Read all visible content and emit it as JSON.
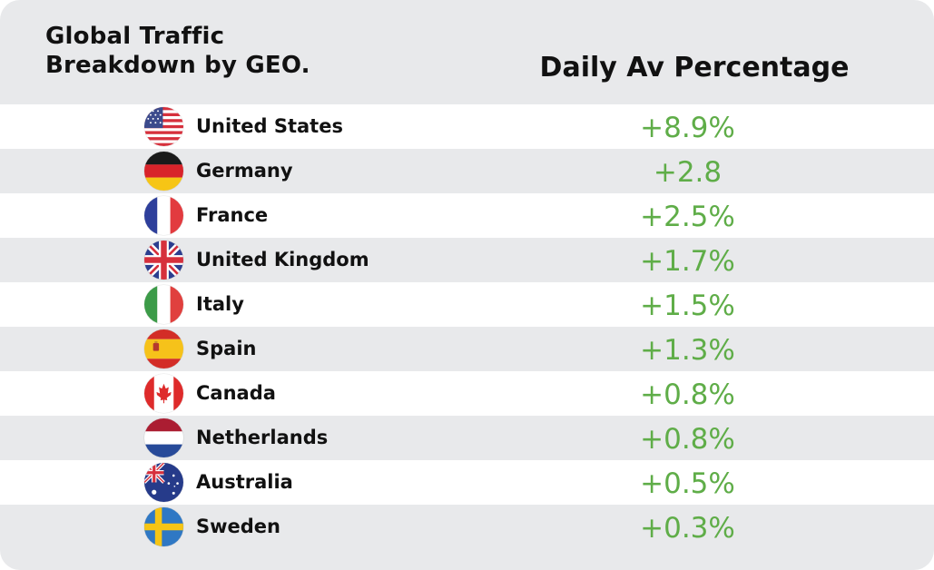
{
  "chart_data": {
    "type": "table",
    "title": "Global Traffic Breakdown by GEO.",
    "column_header": "Daily Av Percentage",
    "value_color": "#5fad48",
    "rows": [
      {
        "country": "United States",
        "value": "+8.9%",
        "flag": "us-flag-icon"
      },
      {
        "country": "Germany",
        "value": "+2.8",
        "flag": "germany-flag-icon"
      },
      {
        "country": "France",
        "value": "+2.5%",
        "flag": "france-flag-icon"
      },
      {
        "country": "United Kingdom",
        "value": "+1.7%",
        "flag": "uk-flag-icon"
      },
      {
        "country": "Italy",
        "value": "+1.5%",
        "flag": "italy-flag-icon"
      },
      {
        "country": "Spain",
        "value": "+1.3%",
        "flag": "spain-flag-icon"
      },
      {
        "country": "Canada",
        "value": "+0.8%",
        "flag": "canada-flag-icon"
      },
      {
        "country": "Netherlands",
        "value": "+0.8%",
        "flag": "netherlands-flag-icon"
      },
      {
        "country": "Australia",
        "value": "+0.5%",
        "flag": "australia-flag-icon"
      },
      {
        "country": "Sweden",
        "value": "+0.3%",
        "flag": "sweden-flag-icon"
      }
    ]
  }
}
